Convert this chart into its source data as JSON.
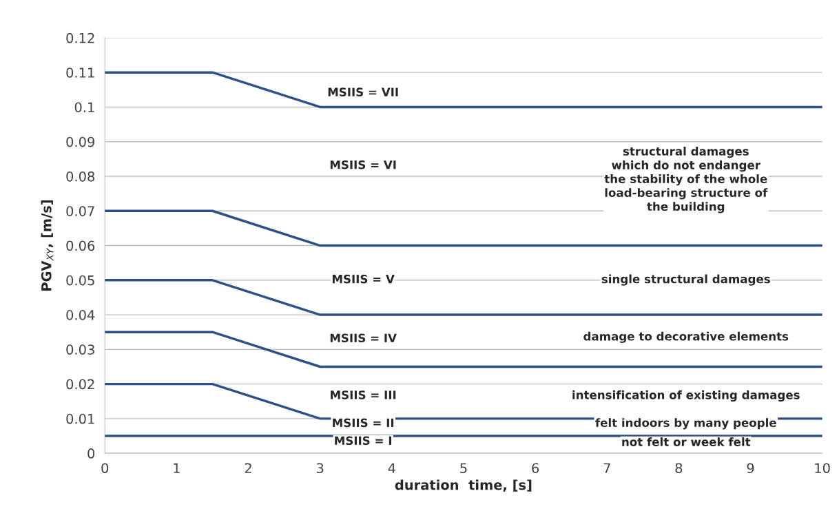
{
  "chart_data": {
    "type": "line",
    "xlabel": "duration  time, [s]",
    "ylabel": "PGV$_{XY}$, [m/s]",
    "x": [
      0,
      1.5,
      3,
      10
    ],
    "series": [
      {
        "color": "#2e5087",
        "values": [
          0.11,
          0.11,
          0.1,
          0.1
        ]
      },
      {
        "color": "#2e5087",
        "values": [
          0.07,
          0.07,
          0.06,
          0.06
        ]
      },
      {
        "color": "#2e5087",
        "values": [
          0.05,
          0.05,
          0.04,
          0.04
        ]
      },
      {
        "color": "#2e5087",
        "values": [
          0.035,
          0.035,
          0.025,
          0.025
        ]
      },
      {
        "color": "#2e5087",
        "values": [
          0.02,
          0.02,
          0.01,
          0.01
        ]
      },
      {
        "color": "#2e5087",
        "values": [
          0.005,
          0.005,
          0.005,
          0.005
        ]
      }
    ],
    "xlim": [
      0,
      10
    ],
    "ylim": [
      0,
      0.12
    ],
    "xticks": [
      0,
      1,
      2,
      3,
      4,
      5,
      6,
      7,
      8,
      9,
      10
    ],
    "yticks": [
      {
        "value": 0,
        "label": "0"
      },
      {
        "value": 0.01,
        "label": "0.01"
      },
      {
        "value": 0.02,
        "label": "0.02"
      },
      {
        "value": 0.03,
        "label": "0.03"
      },
      {
        "value": 0.04,
        "label": "0.04"
      },
      {
        "value": 0.05,
        "label": "0.05"
      },
      {
        "value": 0.06,
        "label": "0.06"
      },
      {
        "value": 0.07,
        "label": "0.07"
      },
      {
        "value": 0.08,
        "label": "0.08"
      },
      {
        "value": 0.09,
        "label": "0.09"
      },
      {
        "value": 0.1,
        "label": "0.1"
      },
      {
        "value": 0.11,
        "label": "0.11"
      },
      {
        "value": 0.12,
        "label": "0.12"
      }
    ],
    "grid": "y",
    "marker": "none",
    "line_style": "solid",
    "annotations": [
      "MSIIS = VII",
      "MSIIS = VI",
      "MSIIS = V",
      "MSIIS = IV",
      "MSIIS = III",
      "MSIIS = II",
      "MSIIS = I",
      "structural damages\nwhich do not endanger\nthe stability of the whole\nload-bearing structure of\nthe building",
      "single structural damages",
      "damage to decorative elements",
      "intensification of existing damages",
      "felt indoors by many people",
      "not felt or week felt"
    ]
  }
}
